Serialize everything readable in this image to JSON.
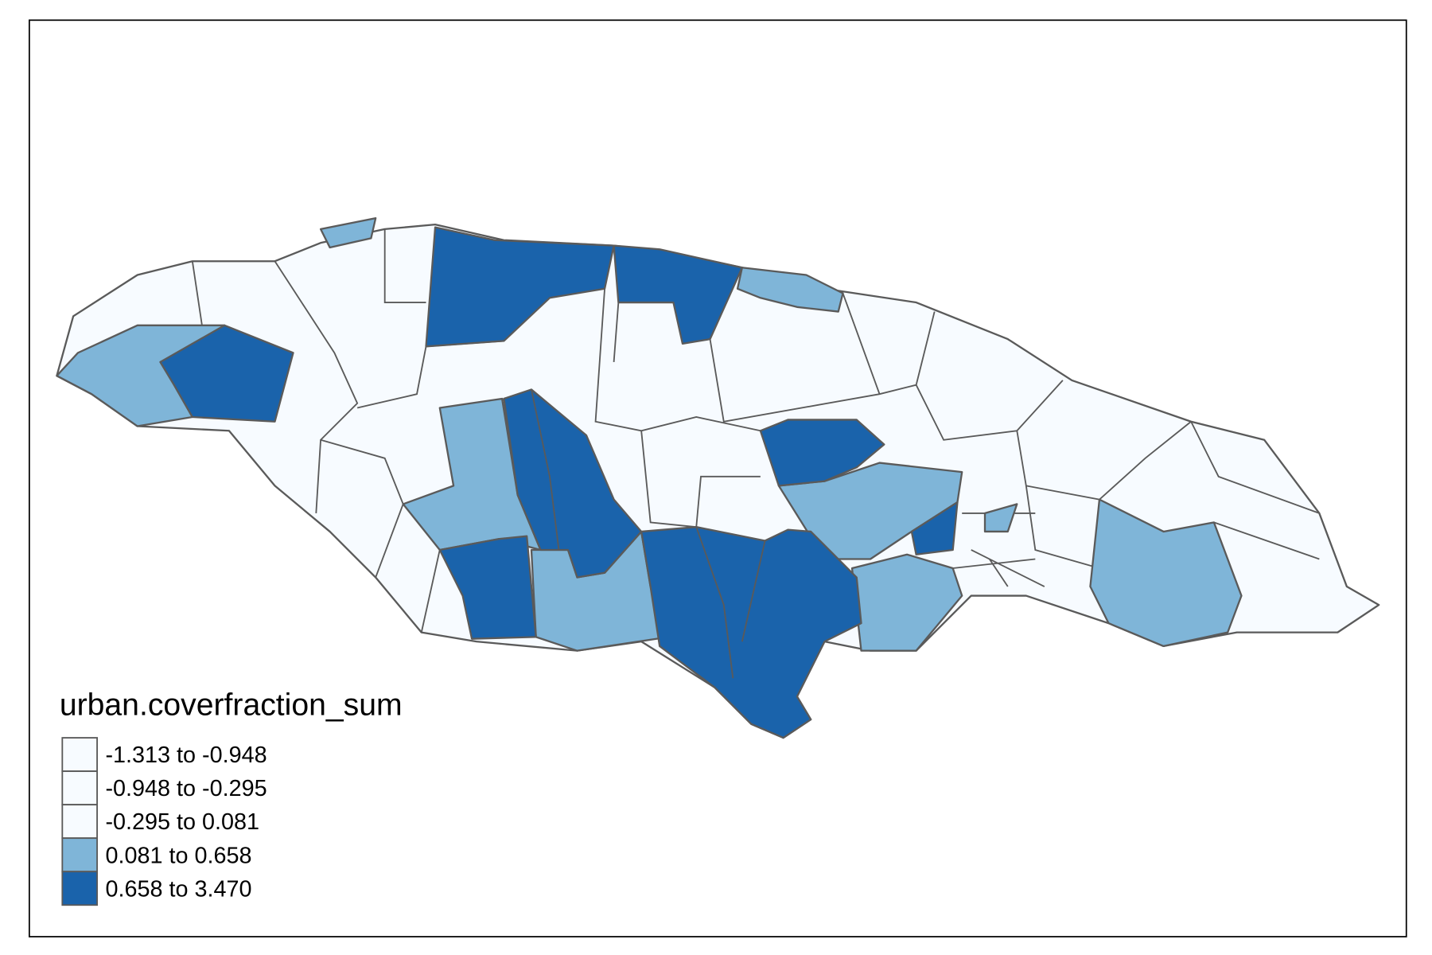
{
  "legend": {
    "title": "urban.coverfraction_sum",
    "items": [
      {
        "label": "-1.313 to -0.948",
        "color": "#f7fbff"
      },
      {
        "label": "-0.948 to -0.295",
        "color": "#f7fbff"
      },
      {
        "label": "-0.295 to 0.081",
        "color": "#f7fbff"
      },
      {
        "label": "0.081 to 0.658",
        "color": "#7fb5d8"
      },
      {
        "label": "0.658 to 3.470",
        "color": "#1a63ab"
      }
    ]
  }
}
